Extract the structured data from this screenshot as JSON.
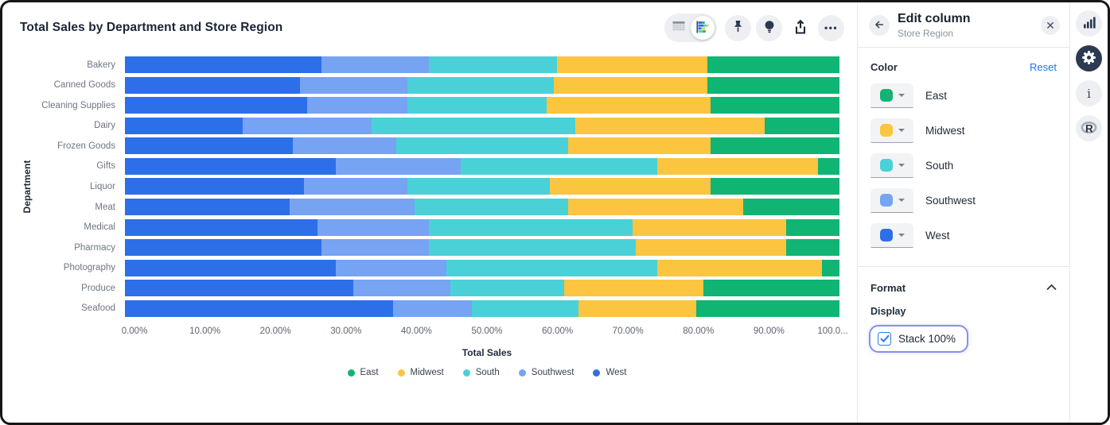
{
  "header": {
    "title": "Total Sales by Department and Store Region"
  },
  "toolbar": {
    "icons": [
      "table-view",
      "chart-view",
      "pin",
      "lightbulb",
      "share",
      "more-options"
    ],
    "active_view": "chart-view",
    "more_label": "•••"
  },
  "chart_data": {
    "type": "bar",
    "orientation": "horizontal",
    "stacked": "100%",
    "title": "Total Sales by Department and Store Region",
    "xlabel": "Total Sales",
    "ylabel": "Department",
    "xlim": [
      0,
      100
    ],
    "grid": false,
    "legend_position": "bottom",
    "categories": [
      "Bakery",
      "Canned Goods",
      "Cleaning Supplies",
      "Dairy",
      "Frozen Goods",
      "Gifts",
      "Liquor",
      "Meat",
      "Medical",
      "Pharmacy",
      "Photography",
      "Produce",
      "Seafood"
    ],
    "stack_order": [
      "West",
      "Southwest",
      "South",
      "Midwest",
      "East"
    ],
    "series": [
      {
        "name": "West",
        "color": "#2D6FE8",
        "values": [
          27.5,
          24.5,
          25.5,
          16.5,
          23.5,
          29.5,
          25.0,
          23.0,
          27.0,
          27.5,
          29.5,
          32.0,
          37.5
        ]
      },
      {
        "name": "Southwest",
        "color": "#76A3F2",
        "values": [
          15.0,
          15.0,
          14.0,
          18.0,
          14.5,
          17.5,
          14.5,
          17.5,
          15.5,
          15.0,
          15.5,
          13.5,
          11.0
        ]
      },
      {
        "name": "South",
        "color": "#4AD1D8",
        "values": [
          18.0,
          20.5,
          19.5,
          28.5,
          24.0,
          27.5,
          20.0,
          21.5,
          28.5,
          29.0,
          29.5,
          16.0,
          15.0
        ]
      },
      {
        "name": "Midwest",
        "color": "#FBC53F",
        "values": [
          21.0,
          21.5,
          23.0,
          26.5,
          20.0,
          22.5,
          22.5,
          24.5,
          21.5,
          21.0,
          23.0,
          19.5,
          16.5
        ]
      },
      {
        "name": "East",
        "color": "#10B573",
        "values": [
          18.5,
          18.5,
          18.0,
          10.5,
          18.0,
          3.0,
          18.0,
          13.5,
          7.5,
          7.5,
          2.5,
          19.0,
          20.0
        ]
      }
    ],
    "x_ticks": [
      "0.00%",
      "10.00%",
      "20.00%",
      "30.00%",
      "40.00%",
      "50.00%",
      "60.00%",
      "70.00%",
      "80.00%",
      "90.00%",
      "100.0..."
    ],
    "legend": [
      {
        "label": "East",
        "color": "#10B573"
      },
      {
        "label": "Midwest",
        "color": "#FBC53F"
      },
      {
        "label": "South",
        "color": "#4AD1D8"
      },
      {
        "label": "Southwest",
        "color": "#76A3F2"
      },
      {
        "label": "West",
        "color": "#2D6FE8"
      }
    ]
  },
  "panel": {
    "title": "Edit column",
    "subtitle": "Store Region",
    "color_section": {
      "label": "Color",
      "reset_label": "Reset",
      "rows": [
        {
          "name": "East",
          "color": "#10B573"
        },
        {
          "name": "Midwest",
          "color": "#FBC53F"
        },
        {
          "name": "South",
          "color": "#4AD1D8"
        },
        {
          "name": "Southwest",
          "color": "#76A3F2"
        },
        {
          "name": "West",
          "color": "#2D6FE8"
        }
      ]
    },
    "format_section": {
      "label": "Format",
      "display_label": "Display",
      "stack_checkbox": {
        "label": "Stack 100%",
        "checked": true
      }
    }
  },
  "rail": {
    "icons": [
      "bar-chart",
      "settings-gear",
      "info",
      "r-logo"
    ],
    "active": "settings-gear"
  },
  "colors": {
    "accent_blue": "#2470f2",
    "focus_ring": "#8790ee",
    "icon_dark": "#2c3850",
    "text_dark": "#1b2538",
    "text_gray": "#6e7580"
  }
}
